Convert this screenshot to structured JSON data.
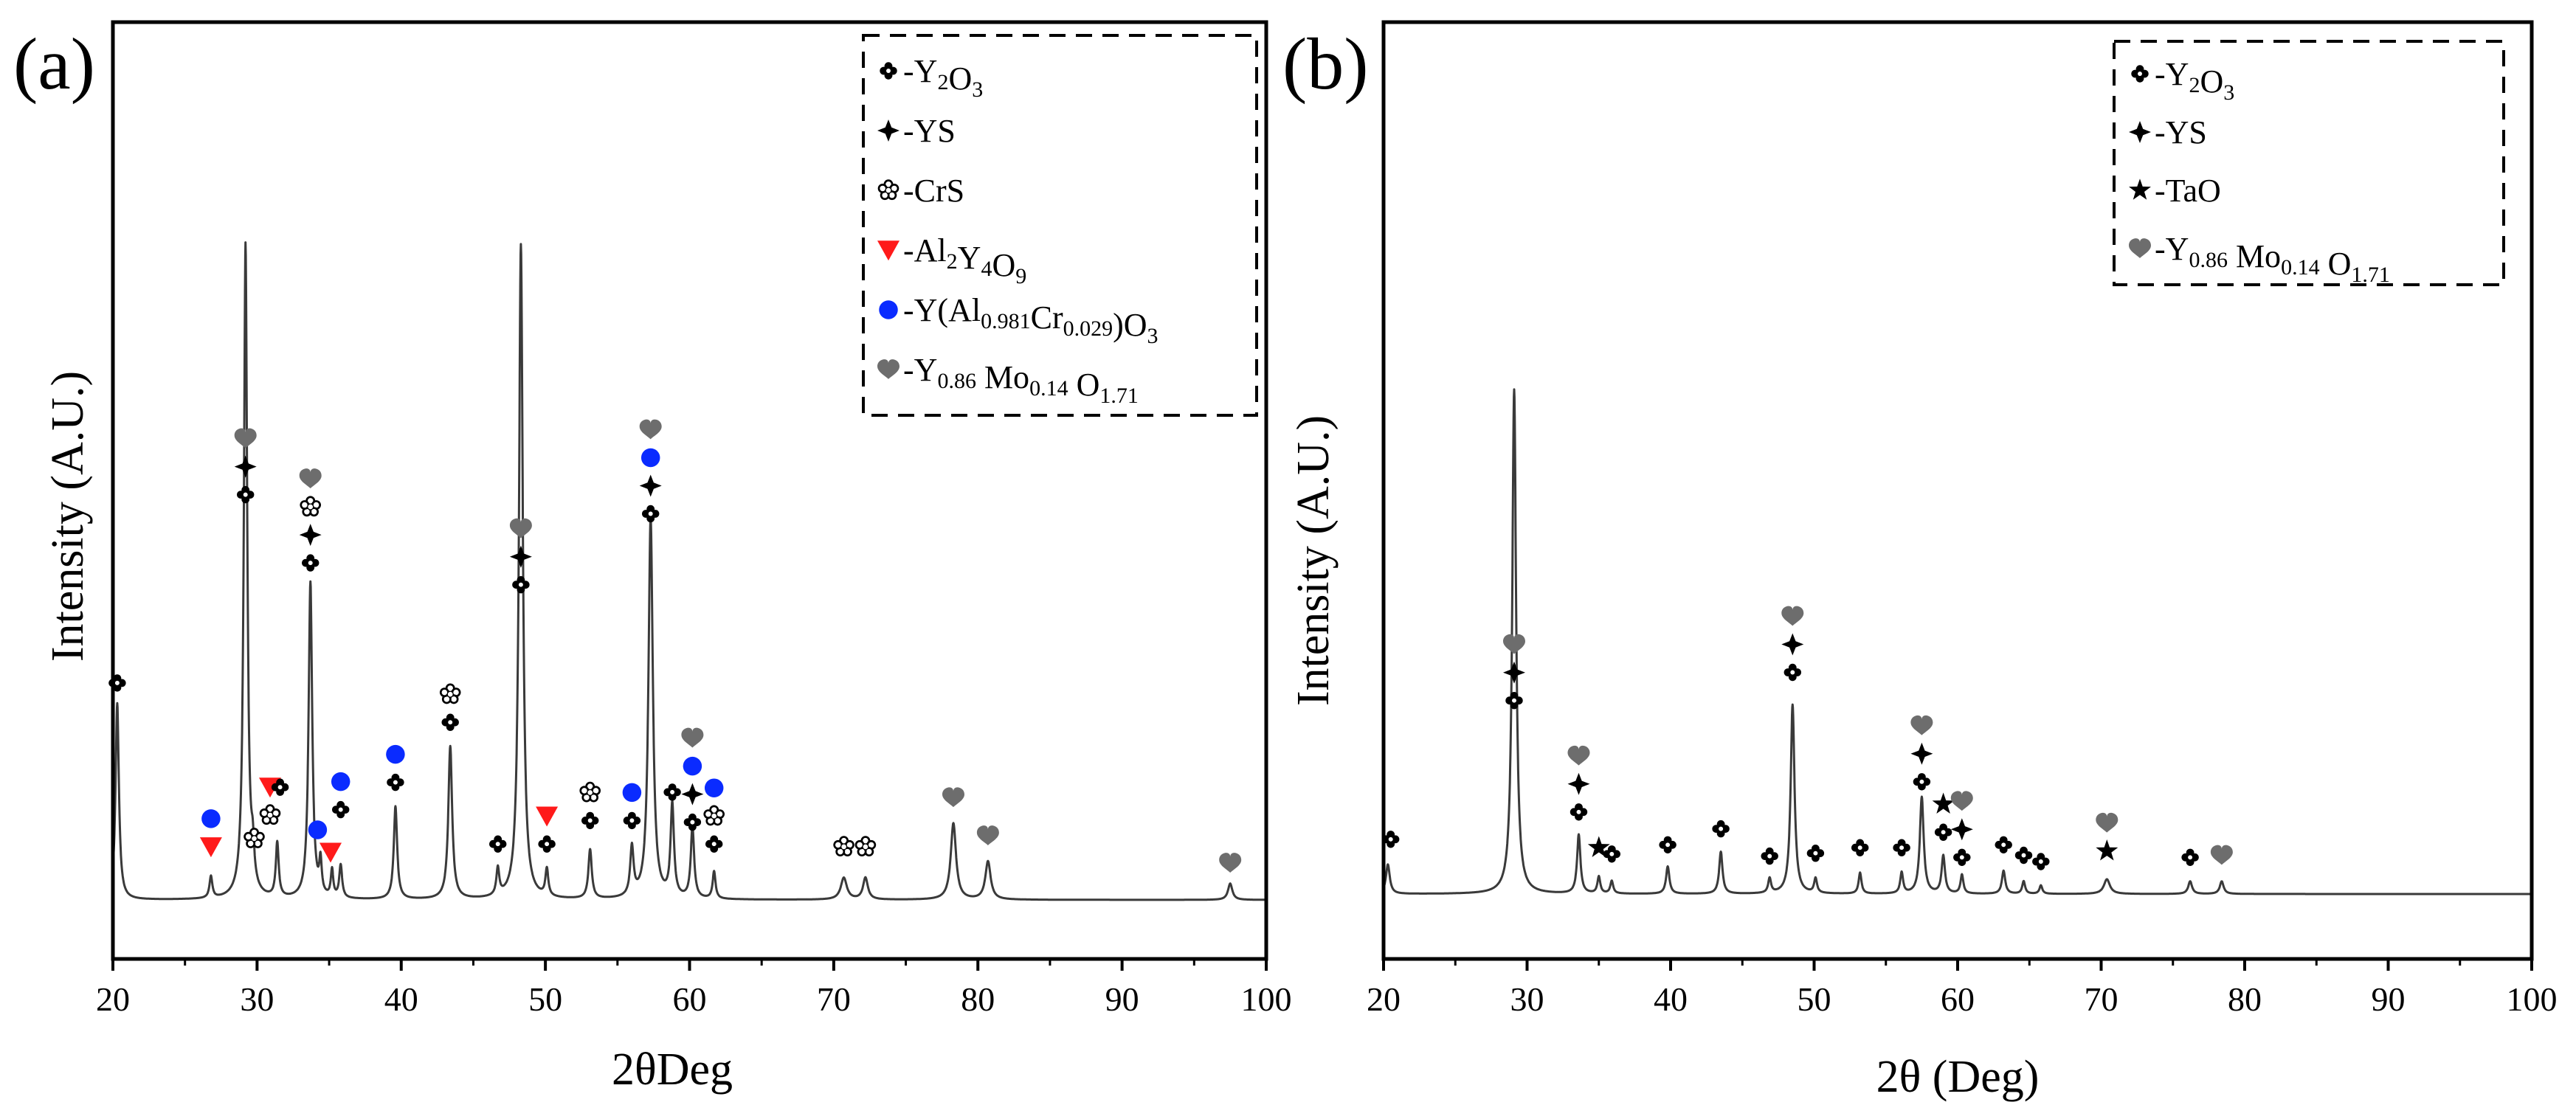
{
  "colors": {
    "axis": "#000000",
    "line": "#3a3a3a",
    "heart": "#6d6d6d",
    "blue": "#0a2bff",
    "red": "#ff1a1a",
    "ink": "#000000"
  },
  "chart_data": [
    {
      "type": "line",
      "panel_label": "(a)",
      "xlabel": "2θDeg",
      "ylabel": "Intensity (A.U.)",
      "xlim": [
        20,
        100
      ],
      "ylim": [
        0,
        100
      ],
      "xticks": [
        "20",
        "30",
        "40",
        "50",
        "60",
        "70",
        "80",
        "90",
        "100"
      ],
      "legend": {
        "position": "top-right",
        "entries": [
          {
            "symbol": "quatrefoil",
            "parts": [
              [
                "-Y",
                "n"
              ],
              [
                "2",
                "sub"
              ],
              [
                "O",
                "n"
              ],
              [
                "3",
                "sub"
              ]
            ]
          },
          {
            "symbol": "star4",
            "parts": [
              [
                "-YS",
                "n"
              ]
            ]
          },
          {
            "symbol": "flower",
            "parts": [
              [
                "-CrS",
                "n"
              ]
            ]
          },
          {
            "symbol": "triangle-red",
            "parts": [
              [
                "-Al",
                "n"
              ],
              [
                "2",
                "sub"
              ],
              [
                "Y",
                "n"
              ],
              [
                "4",
                "sub"
              ],
              [
                "O",
                "n"
              ],
              [
                "9",
                "sub"
              ]
            ]
          },
          {
            "symbol": "dot-blue",
            "parts": [
              [
                "-Y(Al",
                "n"
              ],
              [
                "0.981",
                "sub"
              ],
              [
                "Cr",
                "n"
              ],
              [
                "0.029",
                "sub"
              ],
              [
                ")O",
                "n"
              ],
              [
                "3",
                "sub"
              ]
            ]
          },
          {
            "symbol": "heart",
            "parts": [
              [
                "-Y",
                "n"
              ],
              [
                "0.86",
                "sub"
              ],
              [
                " Mo",
                "n"
              ],
              [
                "0.14",
                "sub"
              ],
              [
                " O",
                "n"
              ],
              [
                "1.71",
                "sub"
              ]
            ]
          }
        ]
      },
      "peaks": [
        {
          "x": 20.3,
          "y": 36,
          "w": 0.14
        },
        {
          "x": 26.8,
          "y": 4,
          "w": 0.12
        },
        {
          "x": 29.2,
          "y": 120,
          "w": 0.14
        },
        {
          "x": 29.7,
          "y": 6,
          "w": 0.12
        },
        {
          "x": 31.4,
          "y": 10,
          "w": 0.12
        },
        {
          "x": 33.7,
          "y": 58,
          "w": 0.15
        },
        {
          "x": 34.4,
          "y": 6,
          "w": 0.1
        },
        {
          "x": 35.2,
          "y": 5,
          "w": 0.1
        },
        {
          "x": 35.8,
          "y": 6,
          "w": 0.12
        },
        {
          "x": 39.6,
          "y": 17,
          "w": 0.14
        },
        {
          "x": 43.4,
          "y": 28,
          "w": 0.16
        },
        {
          "x": 46.7,
          "y": 5,
          "w": 0.12
        },
        {
          "x": 48.3,
          "y": 120,
          "w": 0.16
        },
        {
          "x": 50.1,
          "y": 5,
          "w": 0.12
        },
        {
          "x": 53.1,
          "y": 9,
          "w": 0.14
        },
        {
          "x": 56.0,
          "y": 9,
          "w": 0.14
        },
        {
          "x": 57.3,
          "y": 70,
          "w": 0.18
        },
        {
          "x": 58.8,
          "y": 17,
          "w": 0.14
        },
        {
          "x": 60.2,
          "y": 13,
          "w": 0.14
        },
        {
          "x": 61.7,
          "y": 5,
          "w": 0.12
        },
        {
          "x": 70.7,
          "y": 4,
          "w": 0.25
        },
        {
          "x": 72.2,
          "y": 4,
          "w": 0.2
        },
        {
          "x": 78.3,
          "y": 14,
          "w": 0.22
        },
        {
          "x": 80.7,
          "y": 7,
          "w": 0.22
        },
        {
          "x": 97.5,
          "y": 3,
          "w": 0.18
        }
      ],
      "markers": [
        {
          "x": 20.3,
          "y": 36.5,
          "stack": [
            "quatrefoil"
          ]
        },
        {
          "x": 26.8,
          "y": 6.5,
          "stack": [
            "triangle-red",
            "dot-blue"
          ]
        },
        {
          "x": 29.2,
          "y": 71,
          "stack": [
            "quatrefoil",
            "star4",
            "heart"
          ]
        },
        {
          "x": 29.8,
          "y": 8,
          "stack": [
            "flower"
          ]
        },
        {
          "x": 30.9,
          "y": 12.3,
          "stack": [
            "flower",
            "triangle-red"
          ]
        },
        {
          "x": 31.6,
          "y": 17.4,
          "stack": [
            "quatrefoil"
          ]
        },
        {
          "x": 33.7,
          "y": 58.5,
          "stack": [
            "quatrefoil",
            "star4",
            "flower",
            "heart"
          ]
        },
        {
          "x": 34.2,
          "y": 9.6,
          "stack": [
            "dot-blue"
          ]
        },
        {
          "x": 35.1,
          "y": 5.5,
          "stack": [
            "triangle-red"
          ]
        },
        {
          "x": 35.8,
          "y": 13.3,
          "stack": [
            "quatrefoil",
            "dot-blue"
          ]
        },
        {
          "x": 39.6,
          "y": 18.3,
          "stack": [
            "quatrefoil",
            "dot-blue"
          ]
        },
        {
          "x": 43.4,
          "y": 29.3,
          "stack": [
            "quatrefoil",
            "flower"
          ]
        },
        {
          "x": 46.7,
          "y": 7,
          "stack": [
            "quatrefoil"
          ]
        },
        {
          "x": 48.3,
          "y": 54.5,
          "stack": [
            "quatrefoil",
            "star4",
            "heart"
          ]
        },
        {
          "x": 50.1,
          "y": 7,
          "stack": [
            "quatrefoil",
            "triangle-red"
          ]
        },
        {
          "x": 53.1,
          "y": 11.3,
          "stack": [
            "quatrefoil",
            "flower"
          ]
        },
        {
          "x": 56.0,
          "y": 11.3,
          "stack": [
            "quatrefoil",
            "dot-blue"
          ]
        },
        {
          "x": 57.3,
          "y": 67.5,
          "stack": [
            "quatrefoil",
            "star4",
            "dot-blue",
            "heart"
          ]
        },
        {
          "x": 58.8,
          "y": 16.5,
          "stack": [
            "quatrefoil"
          ]
        },
        {
          "x": 60.2,
          "y": 11,
          "stack": [
            "quatrefoil",
            "star4",
            "dot-blue",
            "heart"
          ]
        },
        {
          "x": 61.7,
          "y": 7,
          "stack": [
            "quatrefoil",
            "flower",
            "dot-blue"
          ]
        },
        {
          "x": 70.7,
          "y": 6.5,
          "stack": [
            "flower"
          ]
        },
        {
          "x": 72.2,
          "y": 6.5,
          "stack": [
            "flower"
          ]
        },
        {
          "x": 78.3,
          "y": 15.5,
          "stack": [
            "heart"
          ]
        },
        {
          "x": 80.7,
          "y": 8.5,
          "stack": [
            "heart"
          ]
        },
        {
          "x": 97.5,
          "y": 3.5,
          "stack": [
            "heart"
          ]
        }
      ]
    },
    {
      "type": "line",
      "panel_label": "(b)",
      "xlabel": "2θ (Deg)",
      "ylabel": "Intensity (A.U.)",
      "xlim": [
        20,
        100
      ],
      "ylim": [
        0,
        100
      ],
      "xticks": [
        "20",
        "30",
        "40",
        "50",
        "60",
        "70",
        "80",
        "90",
        "100"
      ],
      "legend": {
        "position": "top-right",
        "entries": [
          {
            "symbol": "quatrefoil",
            "parts": [
              [
                "-Y",
                "n"
              ],
              [
                "2",
                "sub"
              ],
              [
                "O",
                "n"
              ],
              [
                "3",
                "sub"
              ]
            ]
          },
          {
            "symbol": "star4",
            "parts": [
              [
                "-YS",
                "n"
              ]
            ]
          },
          {
            "symbol": "star5",
            "parts": [
              [
                "-TaO",
                "n"
              ]
            ]
          },
          {
            "symbol": "heart",
            "parts": [
              [
                "-Y",
                "n"
              ],
              [
                "0.86",
                "sub"
              ],
              [
                " Mo",
                "n"
              ],
              [
                "0.14",
                "sub"
              ],
              [
                " O",
                "n"
              ],
              [
                "1.71",
                "sub"
              ]
            ]
          }
        ]
      },
      "peaks": [
        {
          "x": 20.3,
          "y": 7,
          "w": 0.16
        },
        {
          "x": 29.1,
          "y": 120,
          "w": 0.16
        },
        {
          "x": 33.6,
          "y": 14,
          "w": 0.14
        },
        {
          "x": 35.0,
          "y": 4,
          "w": 0.12
        },
        {
          "x": 35.9,
          "y": 3,
          "w": 0.12
        },
        {
          "x": 39.8,
          "y": 6.5,
          "w": 0.14
        },
        {
          "x": 43.5,
          "y": 10,
          "w": 0.14
        },
        {
          "x": 46.9,
          "y": 3.5,
          "w": 0.12
        },
        {
          "x": 48.5,
          "y": 45,
          "w": 0.16
        },
        {
          "x": 50.1,
          "y": 3.5,
          "w": 0.12
        },
        {
          "x": 53.2,
          "y": 5,
          "w": 0.12
        },
        {
          "x": 56.1,
          "y": 5,
          "w": 0.12
        },
        {
          "x": 57.5,
          "y": 23,
          "w": 0.16
        },
        {
          "x": 59.0,
          "y": 9,
          "w": 0.14
        },
        {
          "x": 60.3,
          "y": 4.5,
          "w": 0.12
        },
        {
          "x": 63.2,
          "y": 5.5,
          "w": 0.14
        },
        {
          "x": 64.6,
          "y": 3,
          "w": 0.12
        },
        {
          "x": 65.8,
          "y": 2,
          "w": 0.12
        },
        {
          "x": 70.4,
          "y": 3.5,
          "w": 0.25
        },
        {
          "x": 76.2,
          "y": 3,
          "w": 0.16
        },
        {
          "x": 78.4,
          "y": 3,
          "w": 0.16
        }
      ],
      "markers": [
        {
          "x": 20.5,
          "y": 8.8,
          "stack": [
            "quatrefoil"
          ]
        },
        {
          "x": 29.1,
          "y": 41.8,
          "stack": [
            "quatrefoil",
            "star4",
            "heart"
          ]
        },
        {
          "x": 33.6,
          "y": 15.3,
          "stack": [
            "quatrefoil",
            "star4",
            "heart"
          ]
        },
        {
          "x": 35.0,
          "y": 6.8,
          "stack": [
            "star5"
          ]
        },
        {
          "x": 35.9,
          "y": 5.3,
          "stack": [
            "quatrefoil"
          ]
        },
        {
          "x": 39.8,
          "y": 7.5,
          "stack": [
            "quatrefoil"
          ]
        },
        {
          "x": 43.5,
          "y": 11.3,
          "stack": [
            "quatrefoil"
          ]
        },
        {
          "x": 46.9,
          "y": 4.8,
          "stack": [
            "quatrefoil"
          ]
        },
        {
          "x": 48.5,
          "y": 48.5,
          "stack": [
            "quatrefoil",
            "star4",
            "heart"
          ]
        },
        {
          "x": 50.1,
          "y": 5.5,
          "stack": [
            "quatrefoil"
          ]
        },
        {
          "x": 53.2,
          "y": 6.8,
          "stack": [
            "quatrefoil"
          ]
        },
        {
          "x": 56.1,
          "y": 6.8,
          "stack": [
            "quatrefoil"
          ]
        },
        {
          "x": 57.5,
          "y": 22.5,
          "stack": [
            "quatrefoil",
            "star4",
            "heart"
          ]
        },
        {
          "x": 59.0,
          "y": 10.5,
          "stack": [
            "quatrefoil",
            "star5"
          ]
        },
        {
          "x": 60.3,
          "y": 4.5,
          "stack": [
            "quatrefoil",
            "star4",
            "heart"
          ]
        },
        {
          "x": 63.2,
          "y": 7.5,
          "stack": [
            "quatrefoil"
          ]
        },
        {
          "x": 64.6,
          "y": 5,
          "stack": [
            "quatrefoil"
          ]
        },
        {
          "x": 65.8,
          "y": 3.5,
          "stack": [
            "quatrefoil"
          ]
        },
        {
          "x": 70.4,
          "y": 6,
          "stack": [
            "star5",
            "heart"
          ]
        },
        {
          "x": 76.2,
          "y": 4.5,
          "stack": [
            "quatrefoil"
          ]
        },
        {
          "x": 78.4,
          "y": 5,
          "stack": [
            "heart"
          ]
        }
      ]
    }
  ]
}
